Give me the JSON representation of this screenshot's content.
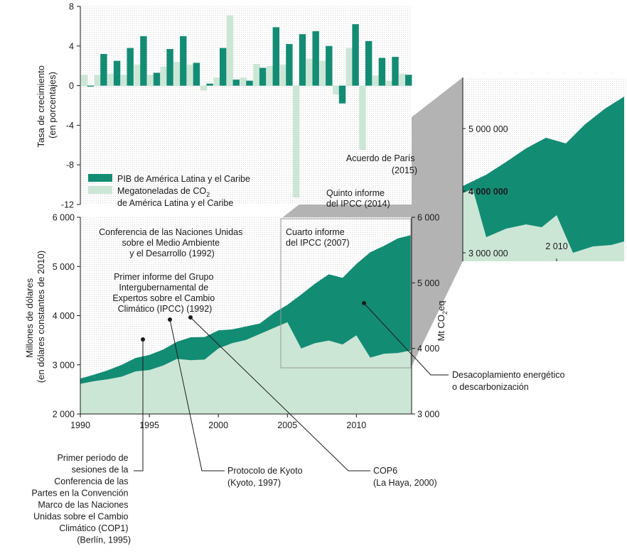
{
  "colors": {
    "gdp": "#138c74",
    "co2": "#cce6d6",
    "callout": "#b3b3b3",
    "hatch": "#dcdcdc",
    "ink": "#1a1a1a"
  },
  "chart_data": [
    {
      "type": "bar",
      "ylabel_lines": [
        "Tasa de crecimiento",
        "(en porcentajes)"
      ],
      "ylim": [
        -12,
        8
      ],
      "y_ticks": [
        8,
        4,
        0,
        -4,
        -8,
        -12
      ],
      "y_tick_labels": [
        "8",
        "4",
        "0",
        "-4",
        "-8",
        "-12"
      ],
      "x": [
        1990,
        1991,
        1992,
        1993,
        1994,
        1995,
        1996,
        1997,
        1998,
        1999,
        2000,
        2001,
        2002,
        2003,
        2004,
        2005,
        2006,
        2007,
        2008,
        2009,
        2010,
        2011,
        2012,
        2013,
        2014
      ],
      "series": [
        {
          "name": "PIB de América Latina y el Caribe",
          "values": [
            -0.1,
            3.2,
            2.5,
            3.8,
            5.0,
            1.3,
            3.7,
            5.0,
            2.3,
            0.2,
            3.8,
            0.6,
            0.5,
            1.8,
            5.9,
            4.2,
            5.2,
            5.5,
            4.0,
            -1.8,
            6.2,
            4.5,
            2.8,
            2.9,
            1.1
          ]
        },
        {
          "name_parts": [
            "Megatoneladas de CO",
            "2",
            "de América Latina y el Caribe"
          ],
          "values": [
            1.1,
            1.1,
            1.2,
            1.1,
            2.1,
            1.1,
            1.9,
            2.4,
            2.1,
            -0.5,
            0.8,
            7.1,
            0.8,
            2.2,
            2.0,
            2.1,
            -11.3,
            2.7,
            2.5,
            -0.9,
            3.8,
            -6.5,
            1.0,
            0.5,
            1.2
          ]
        }
      ],
      "legend": "bottom-left"
    },
    {
      "type": "area",
      "x": [
        1990,
        1991,
        1992,
        1993,
        1994,
        1995,
        1996,
        1997,
        1998,
        1999,
        2000,
        2001,
        2002,
        2003,
        2004,
        2005,
        2006,
        2007,
        2008,
        2009,
        2010,
        2011,
        2012,
        2013,
        2014
      ],
      "xlim": [
        1990,
        2014
      ],
      "x_ticks": [
        1990,
        1995,
        2000,
        2005,
        2010
      ],
      "x_tick_labels": [
        "1990",
        "1995",
        "2000",
        "2005",
        "2010"
      ],
      "ylabel_left_lines": [
        "Millones de dólares",
        "(en dólares constantes de 2010)"
      ],
      "ylim_left": [
        2000,
        6000
      ],
      "y_ticks_left": [
        2000,
        3000,
        4000,
        5000,
        6000
      ],
      "y_tick_labels_left": [
        "2 000",
        "3 000",
        "4 000",
        "5 000",
        "6 000"
      ],
      "ylabel_right_parts": [
        "Mt CO",
        "2",
        "eq"
      ],
      "ylim_right": [
        3000,
        6000
      ],
      "y_ticks_right": [
        3000,
        4000,
        5000,
        6000
      ],
      "y_tick_labels_right": [
        "3 000",
        "4 000",
        "5 000",
        "6 000"
      ],
      "series": [
        {
          "axis": "left",
          "values": [
            2720,
            2800,
            2890,
            3000,
            3140,
            3200,
            3310,
            3470,
            3560,
            3565,
            3700,
            3720,
            3780,
            3840,
            4050,
            4220,
            4430,
            4650,
            4840,
            4770,
            5050,
            5290,
            5420,
            5570,
            5640
          ]
        },
        {
          "axis": "right",
          "values": [
            3460,
            3500,
            3530,
            3570,
            3650,
            3670,
            3740,
            3840,
            3820,
            3830,
            4000,
            4080,
            4130,
            4220,
            4310,
            4400,
            4000,
            4080,
            4120,
            4060,
            4200,
            3860,
            3920,
            3930,
            3970
          ]
        }
      ]
    },
    {
      "type": "area",
      "y_tick_labels": [
        "5 000 000",
        "4 000 000",
        "3 000 000"
      ],
      "x_tick_labels": [
        "2 010"
      ]
    }
  ],
  "annotations": {
    "cop1": [
      "Primer período de",
      "sesiones de la",
      "Conferencia de las",
      "Partes en la Convención",
      "Marco de las Naciones",
      "Unidas sobre el Cambio",
      "Climático (COP1)",
      "(Berlín, 1995)"
    ],
    "kyoto": [
      "Protocolo de Kyoto",
      "(Kyoto, 1997)"
    ],
    "cop6": [
      "COP6",
      "(La Haya, 2000)"
    ],
    "decoupling": [
      "Desacoplamiento energético",
      "o descarbonización"
    ],
    "un_conference": [
      "Conferencia de las Naciones Unidas",
      "sobre el Medio Ambiente",
      "y el Desarrollo (1992)"
    ],
    "ipcc_first": [
      "Primer informe del Grupo",
      "Intergubernamental de",
      "Expertos sobre el Cambio",
      "Climático (IPCC) (1992)"
    ],
    "ipcc_fourth": [
      "Cuarto informe",
      "del IPCC (2007)"
    ],
    "ipcc_fifth": [
      "Quinto informe",
      "del IPCC (2014)"
    ],
    "paris": [
      "Acuerdo de París",
      "(2015)"
    ]
  }
}
